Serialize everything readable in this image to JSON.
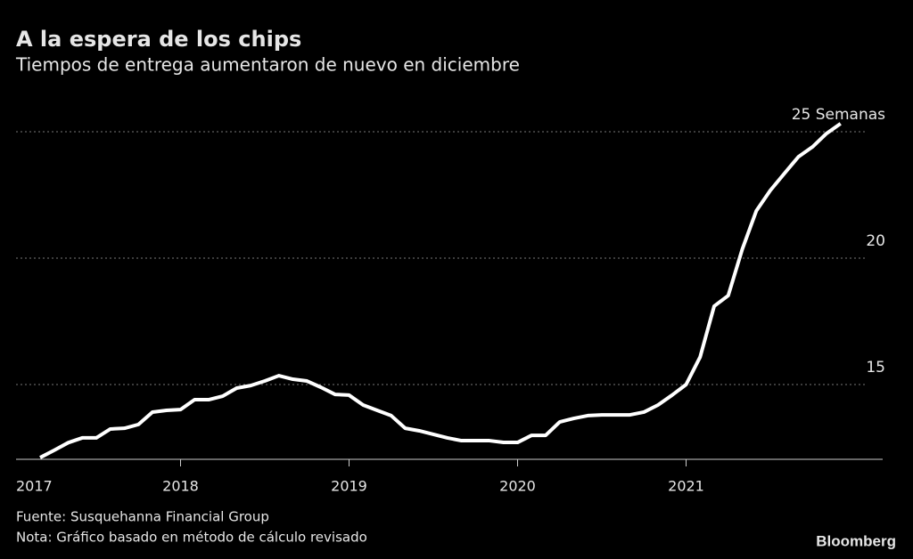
{
  "chart_data": {
    "type": "line",
    "title": "A la espera de los chips",
    "subtitle": "Tiempos de entrega aumentaron de nuevo en diciembre",
    "source": "Fuente: Susquehanna Financial Group",
    "note": "Nota: Gráfico basado en método de cálculo revisado",
    "brand": "Bloomberg",
    "categories": [
      "2017",
      null,
      null,
      null,
      null,
      null,
      null,
      null,
      null,
      null,
      "2018",
      null,
      null,
      null,
      null,
      null,
      null,
      null,
      null,
      null,
      null,
      null,
      "2019",
      null,
      null,
      null,
      null,
      null,
      null,
      null,
      null,
      null,
      null,
      null,
      "2020",
      null,
      null,
      null,
      null,
      null,
      null,
      null,
      null,
      null,
      null,
      null,
      "2021",
      null,
      null,
      null,
      null,
      null,
      null,
      null,
      null,
      null,
      null,
      null
    ],
    "series": [
      {
        "name": "Tiempos de entrega",
        "color": "#ffffff",
        "values": [
          12.11,
          12.4,
          12.7,
          12.89,
          12.89,
          13.24,
          13.27,
          13.42,
          13.91,
          13.98,
          14.01,
          14.4,
          14.4,
          14.54,
          14.86,
          14.96,
          15.14,
          15.35,
          15.21,
          15.14,
          14.89,
          14.61,
          14.58,
          14.19,
          13.98,
          13.77,
          13.27,
          13.17,
          13.03,
          12.89,
          12.78,
          12.78,
          12.78,
          12.71,
          12.71,
          12.99,
          12.99,
          13.52,
          13.66,
          13.77,
          13.8,
          13.8,
          13.8,
          13.91,
          14.19,
          14.58,
          15.0,
          16.09,
          18.1,
          18.52,
          20.35,
          21.87,
          22.68,
          23.35,
          24.01,
          24.4,
          24.93,
          25.32
        ]
      }
    ],
    "ylim": [
      12,
      26
    ],
    "yticks": [
      15,
      20,
      {
        "value": 25,
        "label": "25 Semanas"
      }
    ],
    "grid": true
  }
}
